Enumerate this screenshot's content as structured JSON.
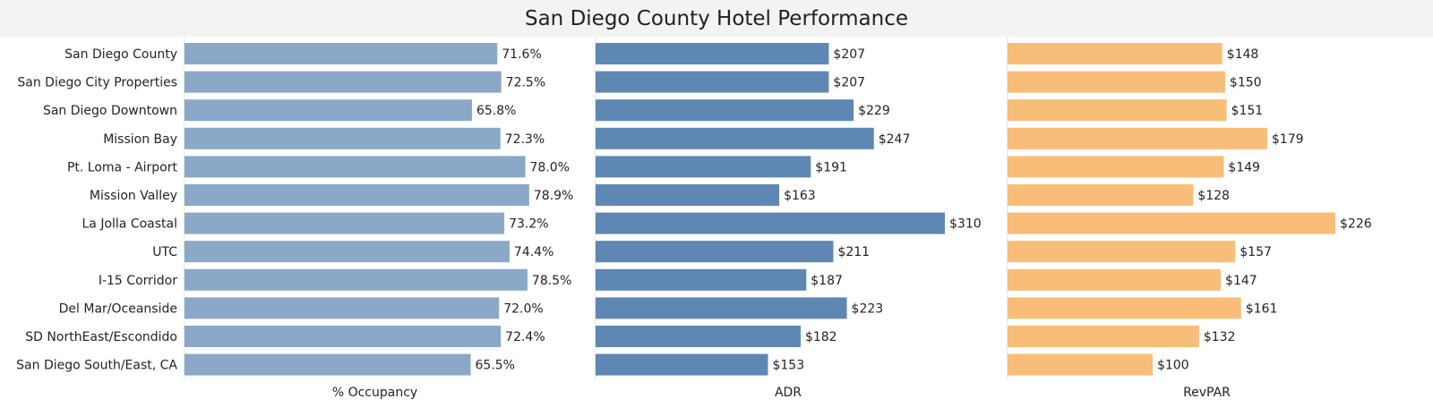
{
  "chart_data": {
    "type": "bar",
    "title": "San Diego County Hotel Performance",
    "categories": [
      "San Diego County",
      "San Diego City Properties",
      "San Diego Downtown",
      "Mission Bay",
      "Pt. Loma - Airport",
      "Mission Valley",
      "La Jolla Coastal",
      "UTC",
      "I-15 Corridor",
      "Del Mar/Oceanside",
      "SD NorthEast/Escondido",
      "San Diego South/East, CA"
    ],
    "panels": [
      {
        "name": "% Occupancy",
        "color": "#8aa8c8",
        "values": [
          71.6,
          72.5,
          65.8,
          72.3,
          78.0,
          78.9,
          73.2,
          74.4,
          78.5,
          72.0,
          72.4,
          65.5
        ],
        "labels": [
          "71.6%",
          "72.5%",
          "65.8%",
          "72.3%",
          "78.0%",
          "78.9%",
          "73.2%",
          "74.4%",
          "78.5%",
          "72.0%",
          "72.4%",
          "65.5%"
        ]
      },
      {
        "name": "ADR",
        "color": "#5f87b3",
        "values": [
          207,
          207,
          229,
          247,
          191,
          163,
          310,
          211,
          187,
          223,
          182,
          153
        ],
        "labels": [
          "$207",
          "$207",
          "$229",
          "$247",
          "$191",
          "$163",
          "$310",
          "$211",
          "$187",
          "$223",
          "$182",
          "$153"
        ]
      },
      {
        "name": "RevPAR",
        "color": "#f8bd78",
        "values": [
          148,
          150,
          151,
          179,
          149,
          128,
          226,
          157,
          147,
          161,
          132,
          100
        ],
        "labels": [
          "$148",
          "$150",
          "$151",
          "$179",
          "$149",
          "$128",
          "$226",
          "$157",
          "$147",
          "$161",
          "$132",
          "$100"
        ]
      }
    ],
    "grid": false,
    "legend": "none"
  }
}
